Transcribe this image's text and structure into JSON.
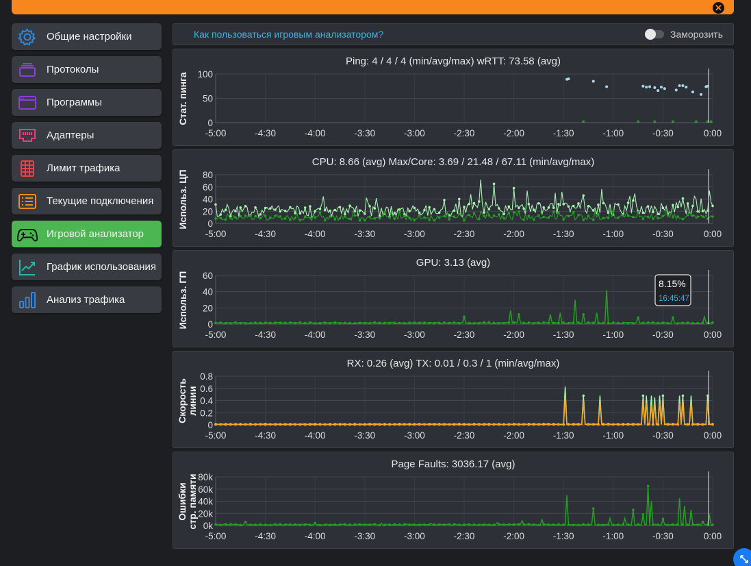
{
  "sidebar": {
    "items": [
      {
        "label": "Общие настройки",
        "icon": "gear-icon",
        "color": "#2e88e0",
        "active": false
      },
      {
        "label": "Протоколы",
        "icon": "stack-icon",
        "color": "#8b3fd6",
        "active": false
      },
      {
        "label": "Программы",
        "icon": "window-icon",
        "color": "#8b3fd6",
        "active": false
      },
      {
        "label": "Адаптеры",
        "icon": "ethernet-port-icon",
        "color": "#e2407a",
        "active": false
      },
      {
        "label": "Лимит трафика",
        "icon": "grid-table-icon",
        "color": "#e0454a",
        "active": false
      },
      {
        "label": "Текущие подключения",
        "icon": "list-icon",
        "color": "#f08a1d",
        "active": false
      },
      {
        "label": "Игровой анализатор",
        "icon": "gamepad-icon",
        "color": "#111111",
        "active": true
      },
      {
        "label": "График использования",
        "icon": "trend-chart-icon",
        "color": "#2bb6a8",
        "active": false
      },
      {
        "label": "Анализ трафика",
        "icon": "bar-chart-icon",
        "color": "#2e88e0",
        "active": false
      }
    ]
  },
  "header": {
    "help_link": "Как пользоваться игровым анализатором?",
    "freeze_label": "Заморозить"
  },
  "colors": {
    "accent": "#f7871d",
    "active": "#4cb752",
    "link": "#39b3e6",
    "green_series": "#22a022",
    "light_series": "#a8f0b0",
    "orange_series": "#f5a623",
    "ping_dots": "#a5d8f0"
  },
  "chart_data": [
    {
      "type": "scatter",
      "title": "Ping: 4 / 4 / 4 (min/avg/max)    wRTT: 73.58 (avg)",
      "ylabel": "Стат. пинга",
      "xticks": [
        "-5:00",
        "-4:30",
        "-4:00",
        "-3:30",
        "-3:00",
        "-2:30",
        "-2:00",
        "-1:30",
        "-1:00",
        "-0:30",
        "0:00"
      ],
      "yticks": [
        "0",
        "50",
        "100"
      ],
      "ylim": [
        0,
        100
      ],
      "series": [
        {
          "color": "#a5d8f0",
          "points": [
            [
              -88,
              89
            ],
            [
              -87,
              90
            ],
            [
              -72,
              85
            ],
            [
              -64,
              74
            ],
            [
              -42,
              75
            ],
            [
              -40,
              73
            ],
            [
              -38,
              74
            ],
            [
              -35,
              72
            ],
            [
              -33,
              66
            ],
            [
              -31,
              73
            ],
            [
              -29,
              70
            ],
            [
              -22,
              67
            ],
            [
              -20,
              76
            ],
            [
              -18,
              76
            ],
            [
              -16,
              73
            ],
            [
              -12,
              63
            ],
            [
              -7,
              58
            ],
            [
              -4,
              74
            ],
            [
              -3,
              75
            ]
          ]
        },
        {
          "color": "#22a022",
          "points": [
            [
              -78,
              2
            ],
            [
              -45,
              2
            ],
            [
              -35,
              2
            ],
            [
              -24,
              2
            ],
            [
              -10,
              2
            ],
            [
              -3,
              2
            ],
            [
              -1,
              2
            ]
          ]
        }
      ]
    },
    {
      "type": "line",
      "title": "CPU: 8.66 (avg)    Max/Core: 3.69 / 21.48 / 67.11 (min/avg/max)",
      "ylabel": "Использ. ЦП",
      "xticks": [
        "-5:00",
        "-4:30",
        "-4:00",
        "-3:30",
        "-3:00",
        "-2:30",
        "-2:00",
        "-1:30",
        "-1:00",
        "-0:30",
        "0:00"
      ],
      "yticks": [
        "0",
        "20",
        "40",
        "60",
        "80"
      ],
      "ylim": [
        0,
        80
      ],
      "series": [
        {
          "color": "#a8f0b0",
          "pattern": "noisy",
          "base": 18,
          "amp": 14,
          "peaks": [
            [
              -140,
              72
            ],
            [
              -132,
              65
            ],
            [
              -120,
              58
            ],
            [
              -95,
              50
            ],
            [
              -50,
              45
            ],
            [
              -10,
              40
            ],
            [
              -2,
              54
            ]
          ]
        },
        {
          "color": "#22a022",
          "pattern": "noisy",
          "base": 8,
          "amp": 6,
          "peaks": [
            [
              -140,
              20
            ],
            [
              -120,
              18
            ],
            [
              -80,
              15
            ]
          ]
        }
      ]
    },
    {
      "type": "line",
      "title": "GPU: 3.13 (avg)",
      "ylabel": "Использ. ГП",
      "xticks": [
        "-5:00",
        "-4:30",
        "-4:00",
        "-3:30",
        "-3:00",
        "-2:30",
        "-2:00",
        "-1:30",
        "-1:00",
        "-0:30",
        "0:00"
      ],
      "yticks": [
        "0",
        "20",
        "40",
        "60"
      ],
      "ylim": [
        0,
        60
      ],
      "tooltip": {
        "value": "8.15%",
        "time": "16:45:47"
      },
      "series": [
        {
          "color": "#22a022",
          "pattern": "low",
          "base": 1.5,
          "amp": 1.2,
          "peaks": [
            [
              -150,
              9
            ],
            [
              -122,
              17
            ],
            [
              -117,
              12
            ],
            [
              -98,
              12
            ],
            [
              -92,
              14
            ],
            [
              -83,
              30
            ],
            [
              -78,
              12
            ],
            [
              -70,
              14
            ],
            [
              -64,
              42
            ],
            [
              -45,
              8
            ],
            [
              -24,
              8
            ],
            [
              -5,
              9
            ]
          ]
        }
      ]
    },
    {
      "type": "line",
      "title": "RX: 0.26 (avg)    TX: 0.01 / 0.3 / 1 (min/avg/max)",
      "ylabel": [
        "Скорость",
        "линии"
      ],
      "xticks": [
        "-5:00",
        "-4:30",
        "-4:00",
        "-3:30",
        "-3:00",
        "-2:30",
        "-2:00",
        "-1:30",
        "-1:00",
        "-0:30",
        "0:00"
      ],
      "yticks": [
        "0",
        "0.2",
        "0.4",
        "0.6",
        "0.8"
      ],
      "ylim": [
        0,
        0.8
      ],
      "series": [
        {
          "color": "#a8f0b0",
          "pattern": "spikes",
          "base": 0.01,
          "amp": 0.005,
          "peaks": [
            [
              -89,
              0.63
            ],
            [
              -78,
              0.48
            ],
            [
              -68,
              0.48
            ],
            [
              -42,
              0.48
            ],
            [
              -40,
              0.48
            ],
            [
              -37,
              0.48
            ],
            [
              -35,
              0.45
            ],
            [
              -32,
              0.48
            ],
            [
              -30,
              0.48
            ],
            [
              -20,
              0.48
            ],
            [
              -18,
              0.48
            ],
            [
              -13,
              0.48
            ],
            [
              -3,
              0.48
            ]
          ]
        },
        {
          "color": "#f5a623",
          "pattern": "spikes",
          "base": 0.005,
          "amp": 0.003,
          "peaks": [
            [
              -89,
              0.45
            ],
            [
              -78,
              0.36
            ],
            [
              -68,
              0.36
            ],
            [
              -42,
              0.36
            ],
            [
              -40,
              0.36
            ],
            [
              -37,
              0.33
            ],
            [
              -35,
              0.36
            ],
            [
              -32,
              0.36
            ],
            [
              -30,
              0.36
            ],
            [
              -20,
              0.36
            ],
            [
              -18,
              0.36
            ],
            [
              -13,
              0.36
            ],
            [
              -3,
              0.36
            ]
          ]
        }
      ]
    },
    {
      "type": "line",
      "title": "Page Faults: 3036.17 (avg)",
      "ylabel": [
        "Ошибки",
        "стр. памяти"
      ],
      "xticks": [
        "-5:00",
        "-4:30",
        "-4:00",
        "-3:30",
        "-3:00",
        "-2:30",
        "-2:00",
        "-1:30",
        "-1:00",
        "-0:30",
        "0:00"
      ],
      "yticks": [
        "0k",
        "20k",
        "40k",
        "60k",
        "80k"
      ],
      "ylim": [
        0,
        80000
      ],
      "series": [
        {
          "color": "#22a022",
          "pattern": "low",
          "base": 1500,
          "amp": 1500,
          "peaks": [
            [
              -282,
              6000
            ],
            [
              -240,
              4000
            ],
            [
              -200,
              4000
            ],
            [
              -170,
              4000
            ],
            [
              -130,
              5000
            ],
            [
              -115,
              8000
            ],
            [
              -103,
              10000
            ],
            [
              -88,
              50000
            ],
            [
              -72,
              28000
            ],
            [
              -62,
              12000
            ],
            [
              -53,
              12000
            ],
            [
              -48,
              26000
            ],
            [
              -42,
              18000
            ],
            [
              -39,
              65000
            ],
            [
              -37,
              40000
            ],
            [
              -30,
              11000
            ],
            [
              -20,
              45000
            ],
            [
              -17,
              32000
            ],
            [
              -13,
              26000
            ],
            [
              -6,
              6000
            ],
            [
              -2,
              18000
            ]
          ]
        }
      ]
    }
  ]
}
